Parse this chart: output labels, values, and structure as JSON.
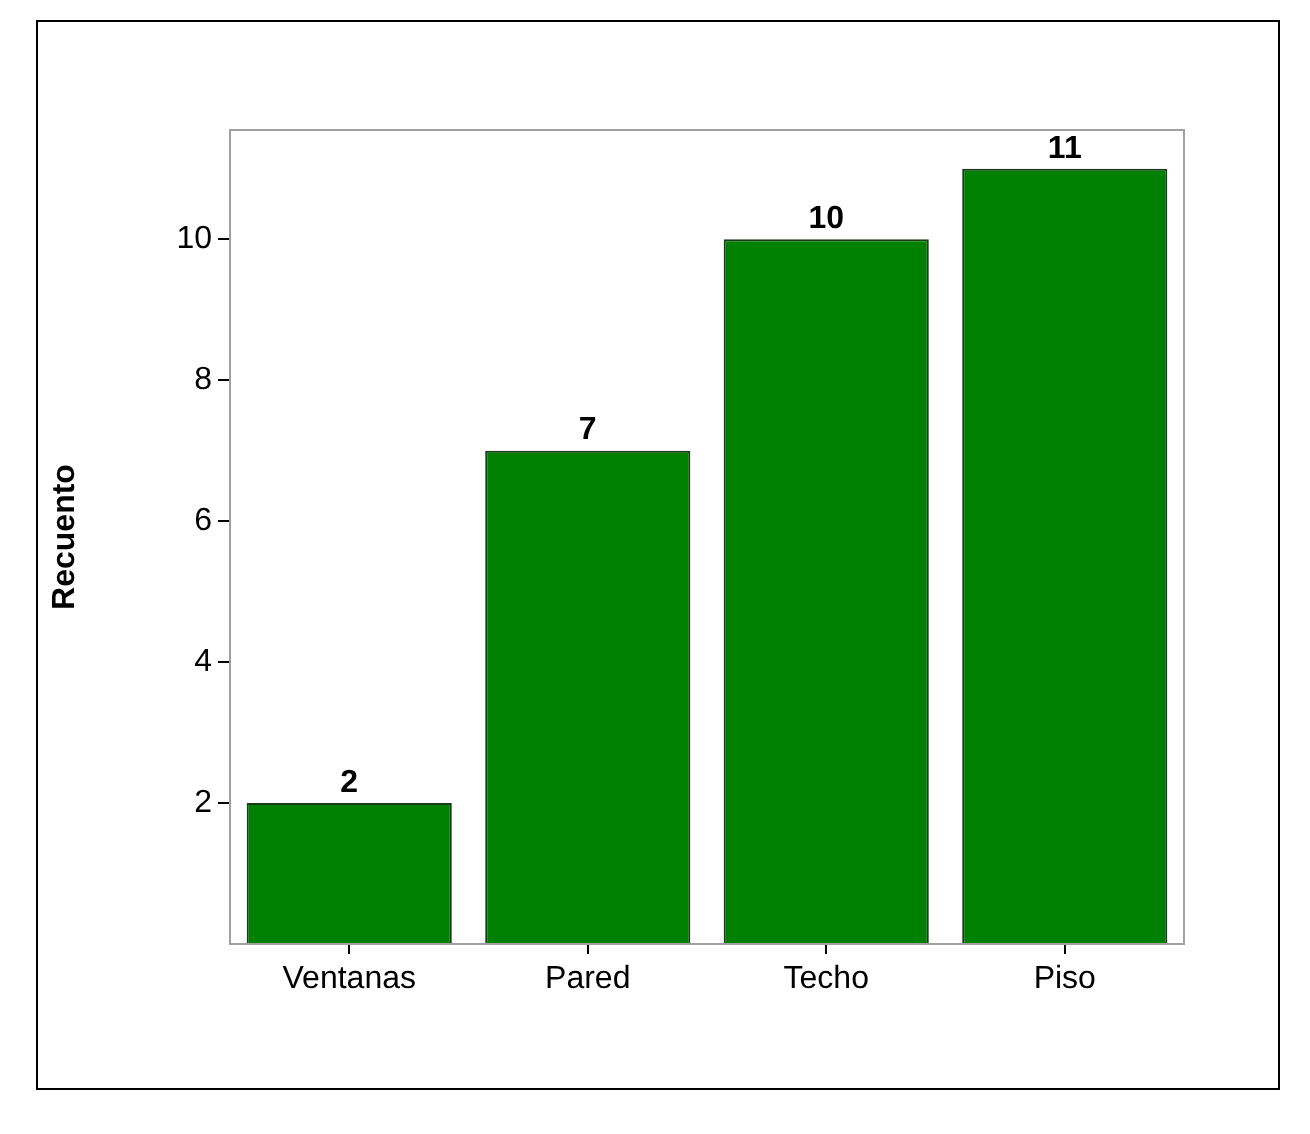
{
  "chart_data": {
    "type": "bar",
    "ylabel": "Recuento",
    "categories": [
      "Ventanas",
      "Pared",
      "Techo",
      "Piso"
    ],
    "values": [
      2,
      7,
      10,
      11
    ],
    "color": "#008000",
    "ylim": [
      0,
      11.55
    ],
    "yticks": [
      2,
      4,
      6,
      8,
      10
    ],
    "grid": false,
    "legend": false,
    "data_labels": true
  }
}
